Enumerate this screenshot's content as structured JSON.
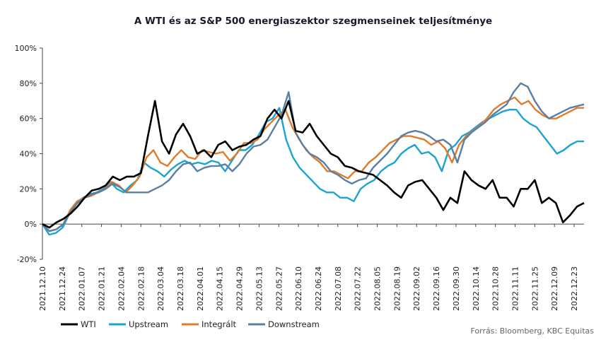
{
  "chart_data": {
    "type": "line",
    "title": "A WTI és az S&P 500 energiaszektor szegmenseinek teljesítménye",
    "source": "Forrás: Bloomberg,  KBC Equitas",
    "ylim": [
      -20,
      100
    ],
    "y_ticks": [
      -20,
      0,
      20,
      40,
      60,
      80,
      100
    ],
    "y_tick_labels": [
      "-20%",
      "0%",
      "20%",
      "40%",
      "60%",
      "80%",
      "100%"
    ],
    "x_tick_labels": [
      "2021.12.10",
      "2021.12.24",
      "2022.01.07",
      "2022.01.21",
      "2022.02.04",
      "2022.02.18",
      "2022.03.04",
      "2022.03.18",
      "2022.04.01",
      "2022.04.15",
      "2022.04.29",
      "2022.05.13",
      "2022.05.27",
      "2022.06.10",
      "2022.06.24",
      "2022.07.08",
      "2022.07.22",
      "2022.08.05",
      "2022.08.19",
      "2022.09.02",
      "2022.09.16",
      "2022.09.30",
      "2022.10.14",
      "2022.10.28",
      "2022.11.11",
      "2022.11.25",
      "2022.12.09",
      "2022.12.23"
    ],
    "grid": false,
    "legend_position": "bottom-left",
    "colors": {
      "WTI": "#000000",
      "Upstream": "#1ba3d1",
      "Integrált": "#e07b2c",
      "Downstream": "#5a7fa3"
    },
    "series": [
      {
        "name": "WTI",
        "values": [
          0,
          -2,
          1,
          3,
          6,
          10,
          15,
          19,
          20,
          22,
          27,
          25,
          27,
          27,
          29,
          50,
          70,
          47,
          40,
          51,
          57,
          50,
          40,
          42,
          38,
          45,
          47,
          42,
          44,
          45,
          48,
          50,
          60,
          65,
          60,
          70,
          53,
          52,
          57,
          50,
          45,
          40,
          38,
          33,
          32,
          30,
          29,
          28,
          25,
          22,
          18,
          15,
          22,
          24,
          25,
          20,
          15,
          8,
          15,
          12,
          30,
          25,
          22,
          20,
          25,
          15,
          15,
          10,
          20,
          20,
          25,
          12,
          15,
          12,
          1,
          5,
          10,
          12
        ]
      },
      {
        "name": "Upstream",
        "values": [
          0,
          -6,
          -5,
          -2,
          6,
          12,
          15,
          17,
          18,
          20,
          24,
          20,
          18,
          22,
          25,
          35,
          32,
          30,
          27,
          31,
          34,
          36,
          34,
          35,
          34,
          36,
          35,
          30,
          36,
          42,
          42,
          45,
          51,
          58,
          60,
          66,
          48,
          38,
          32,
          28,
          24,
          20,
          18,
          18,
          15,
          15,
          13,
          20,
          23,
          25,
          30,
          33,
          35,
          40,
          43,
          45,
          40,
          41,
          38,
          30,
          42,
          45,
          50,
          52,
          55,
          58,
          60,
          62,
          64,
          65,
          65,
          60,
          57,
          55,
          50,
          45,
          40,
          42,
          45,
          47,
          47
        ]
      },
      {
        "name": "Integrált",
        "values": [
          0,
          -4,
          -3,
          0,
          8,
          13,
          15,
          16,
          18,
          20,
          24,
          22,
          18,
          22,
          27,
          38,
          42,
          35,
          33,
          38,
          42,
          38,
          37,
          42,
          41,
          40,
          41,
          36,
          40,
          46,
          46,
          48,
          54,
          58,
          62,
          65,
          55,
          48,
          42,
          38,
          35,
          30,
          30,
          28,
          26,
          30,
          30,
          35,
          38,
          42,
          46,
          48,
          50,
          50,
          49,
          48,
          45,
          47,
          43,
          35,
          45,
          50,
          53,
          56,
          60,
          65,
          68,
          70,
          72,
          68,
          70,
          65,
          62,
          60,
          60,
          62,
          64,
          66,
          66
        ]
      },
      {
        "name": "Downstream",
        "values": [
          0,
          -4,
          -3,
          0,
          7,
          12,
          15,
          17,
          18,
          20,
          23,
          21,
          18,
          18,
          18,
          18,
          20,
          22,
          25,
          30,
          34,
          35,
          30,
          32,
          33,
          33,
          34,
          30,
          34,
          40,
          44,
          45,
          48,
          55,
          62,
          75,
          52,
          45,
          40,
          38,
          35,
          30,
          28,
          25,
          23,
          25,
          26,
          32,
          36,
          40,
          45,
          50,
          52,
          53,
          52,
          50,
          47,
          48,
          45,
          35,
          48,
          52,
          55,
          58,
          62,
          65,
          68,
          75,
          80,
          78,
          70,
          64,
          60,
          62,
          64,
          66,
          67,
          68
        ]
      }
    ]
  }
}
